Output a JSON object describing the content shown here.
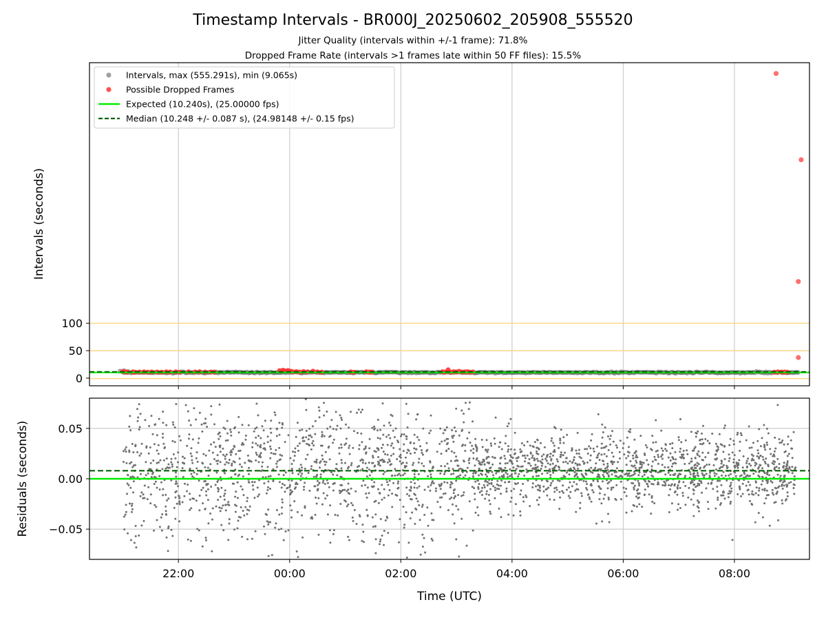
{
  "chart_data": [
    {
      "type": "scatter",
      "title": "Timestamp Intervals - BR000J_20250602_205908_555520",
      "subtitle_lines": [
        "Jitter Quality (intervals within +/-1 frame): 71.8%",
        "Dropped Frame Rate (intervals >1 frames late within 50 FF files): 15.5%"
      ],
      "ylabel": "Intervals (seconds)",
      "yticks": [
        "0",
        "50",
        "100"
      ],
      "ylim": [
        -14,
        575
      ],
      "reference_lines": [
        {
          "y": 100,
          "color": "#ffd27a"
        },
        {
          "y": 50,
          "color": "#ffd27a"
        },
        {
          "y": -1,
          "color": "#ffd27a"
        }
      ],
      "expected": 10.24,
      "median": 10.248,
      "legend": {
        "placement": "upper-left",
        "entries": [
          {
            "label": "Intervals, max (555.291s), min (9.065s)",
            "kind": "marker",
            "color": "#a0a0a0"
          },
          {
            "label": "Possible Dropped Frames",
            "kind": "marker",
            "color": "#ff4040"
          },
          {
            "label": "Expected (10.240s), (25.00000 fps)",
            "kind": "solid",
            "color": "#00ee00"
          },
          {
            "label": "Median (10.248 +/- 0.087 s), (24.98148 +/- 0.15 fps)",
            "kind": "dashed",
            "color": "#006400"
          }
        ]
      },
      "series": [
        {
          "name": "Intervals, max (555.291s), min (9.065s)",
          "color": "#808080",
          "x_range_hours": [
            -3.0,
            9.15
          ],
          "typical_y": 10.25
        },
        {
          "name": "Possible Dropped Frames",
          "color": "#ff3030",
          "cluster_points": [
            [
              -3.0,
              12.0
            ],
            [
              -2.95,
              11.5
            ],
            [
              -2.92,
              10.9
            ],
            [
              -2.82,
              11.2
            ],
            [
              -2.78,
              10.8
            ],
            [
              -2.7,
              11.0
            ],
            [
              -2.62,
              11.3
            ],
            [
              -2.55,
              10.9
            ],
            [
              -2.48,
              11.1
            ],
            [
              -2.38,
              11.0
            ],
            [
              -2.3,
              10.8
            ],
            [
              -2.22,
              11.4
            ],
            [
              -2.15,
              11.0
            ],
            [
              -2.05,
              11.2
            ],
            [
              -1.97,
              10.7
            ],
            [
              -1.82,
              11.3
            ],
            [
              -1.7,
              11.1
            ],
            [
              -1.62,
              11.5
            ],
            [
              -1.52,
              11.0
            ],
            [
              -1.42,
              10.8
            ],
            [
              -1.35,
              11.0
            ],
            [
              -0.18,
              13.5
            ],
            [
              -0.12,
              14.2
            ],
            [
              -0.08,
              13.0
            ],
            [
              -0.03,
              13.7
            ],
            [
              0.02,
              12.6
            ],
            [
              0.06,
              11.4
            ],
            [
              0.12,
              11.8
            ],
            [
              0.18,
              11.0
            ],
            [
              0.25,
              11.9
            ],
            [
              0.32,
              11.2
            ],
            [
              0.42,
              12.5
            ],
            [
              0.5,
              11.1
            ],
            [
              0.58,
              10.9
            ],
            [
              1.1,
              11.3
            ],
            [
              1.16,
              10.7
            ],
            [
              1.38,
              11.5
            ],
            [
              1.44,
              11.0
            ],
            [
              1.48,
              10.8
            ],
            [
              2.75,
              11.5
            ],
            [
              2.8,
              11.0
            ],
            [
              2.85,
              15.0
            ],
            [
              2.9,
              10.9
            ],
            [
              2.95,
              11.6
            ],
            [
              3.0,
              11.2
            ],
            [
              3.05,
              12.3
            ],
            [
              3.1,
              11.0
            ],
            [
              3.15,
              11.4
            ],
            [
              3.2,
              11.6
            ],
            [
              3.25,
              10.8
            ],
            [
              3.3,
              11.1
            ],
            [
              8.72,
              10.8
            ],
            [
              8.78,
              11.2
            ],
            [
              8.85,
              10.9
            ],
            [
              8.9,
              11.1
            ],
            [
              8.95,
              10.7
            ]
          ],
          "outliers": [
            [
              8.75,
              555.291
            ],
            [
              9.2,
              398.0
            ],
            [
              9.15,
              176.0
            ],
            [
              9.15,
              37.5
            ]
          ]
        }
      ]
    },
    {
      "type": "scatter",
      "xlabel": "Time (UTC)",
      "ylabel": "Residuals (seconds)",
      "xticks": [
        "22:00",
        "00:00",
        "02:00",
        "04:00",
        "06:00",
        "08:00"
      ],
      "xtick_hours": [
        -2,
        0,
        2,
        4,
        6,
        8
      ],
      "xlim_hours": [
        -3.6,
        9.35
      ],
      "yticks": [
        "0.05",
        "0.00",
        "−0.05"
      ],
      "ytick_values": [
        0.05,
        0.0,
        -0.05
      ],
      "ylim": [
        -0.08,
        0.08
      ],
      "expected_line": 0.0,
      "median_line": 0.008,
      "residual_segments": [
        {
          "x_from": -3.0,
          "x_to": 3.3,
          "spread_sd": 0.035
        },
        {
          "x_from": 3.3,
          "x_to": 9.1,
          "spread_sd": 0.018
        }
      ],
      "series": [
        {
          "color": "#707070"
        }
      ]
    }
  ]
}
